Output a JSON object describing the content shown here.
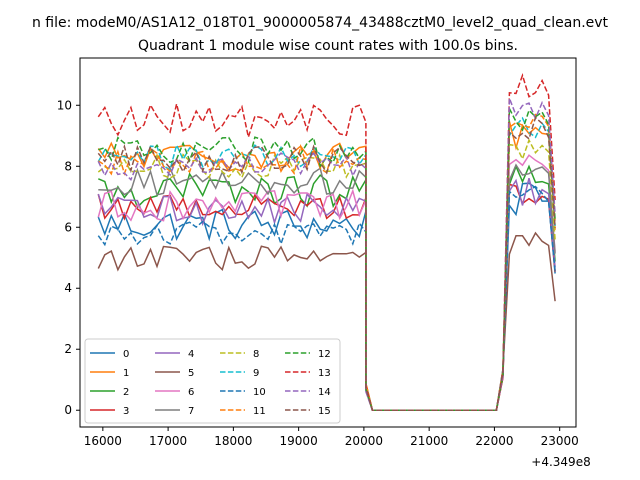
{
  "suptitle": "n file: modeM0/AS1A12_018T01_9000005874_43488cztM0_level2_quad_clean.evt",
  "chart_data": {
    "type": "line",
    "title": "Quadrant 1 module wise count rates with 100.0s bins.",
    "xlabel": "",
    "ylabel": "",
    "x_offset_label": "+4.349e8",
    "xlim": [
      15650,
      23250
    ],
    "ylim": [
      -0.55,
      11.55
    ],
    "xticks": [
      16000,
      17000,
      18000,
      19000,
      20000,
      21000,
      22000,
      23000
    ],
    "xtick_labels": [
      "16000",
      "17000",
      "18000",
      "19000",
      "20000",
      "21000",
      "22000",
      "23000"
    ],
    "yticks": [
      0,
      2,
      4,
      6,
      8,
      10
    ],
    "ytick_labels": [
      "0",
      "2",
      "4",
      "6",
      "8",
      "10"
    ],
    "grid": false,
    "legend_placement": "lower-left",
    "legend_columns": 4,
    "segments": {
      "active1": {
        "start": 15930,
        "end": 20030
      },
      "gap_x": [
        20030,
        20130,
        20230,
        22030,
        22130
      ],
      "gap_y": [
        0.75,
        0.0,
        0.0,
        0.0,
        1.2
      ],
      "active2": {
        "start": 22230,
        "end": 22930
      }
    },
    "series": [
      {
        "name": "0",
        "color": "#1f77b4",
        "dash": "solid",
        "level1": 6.1,
        "level2": 6.9,
        "spread": 0.55
      },
      {
        "name": "1",
        "color": "#ff7f0e",
        "dash": "solid",
        "level1": 8.3,
        "level2": 9.1,
        "spread": 0.5
      },
      {
        "name": "2",
        "color": "#2ca02c",
        "dash": "solid",
        "level1": 7.2,
        "level2": 7.5,
        "spread": 0.55
      },
      {
        "name": "3",
        "color": "#d62728",
        "dash": "solid",
        "level1": 6.7,
        "level2": 7.0,
        "spread": 0.45
      },
      {
        "name": "4",
        "color": "#9467bd",
        "dash": "solid",
        "level1": 6.6,
        "level2": 7.2,
        "spread": 0.5
      },
      {
        "name": "5",
        "color": "#8c564b",
        "dash": "solid",
        "level1": 5.0,
        "level2": 5.5,
        "spread": 0.4
      },
      {
        "name": "6",
        "color": "#e377c2",
        "dash": "solid",
        "level1": 6.7,
        "level2": 8.0,
        "spread": 0.5
      },
      {
        "name": "7",
        "color": "#7f7f7f",
        "dash": "solid",
        "level1": 7.5,
        "level2": 7.9,
        "spread": 0.45
      },
      {
        "name": "8",
        "color": "#bcbd22",
        "dash": "dashed",
        "level1": 8.0,
        "level2": 8.6,
        "spread": 0.4
      },
      {
        "name": "9",
        "color": "#17becf",
        "dash": "dashed",
        "level1": 8.3,
        "level2": 9.3,
        "spread": 0.45
      },
      {
        "name": "10",
        "color": "#1f77b4",
        "dash": "dashed",
        "level1": 5.8,
        "level2": 7.0,
        "spread": 0.4
      },
      {
        "name": "11",
        "color": "#ff7f0e",
        "dash": "dashed",
        "level1": 8.2,
        "level2": 9.5,
        "spread": 0.45
      },
      {
        "name": "12",
        "color": "#2ca02c",
        "dash": "dashed",
        "level1": 8.5,
        "level2": 9.6,
        "spread": 0.5
      },
      {
        "name": "13",
        "color": "#d62728",
        "dash": "dashed",
        "level1": 9.5,
        "level2": 10.6,
        "spread": 0.55
      },
      {
        "name": "14",
        "color": "#9467bd",
        "dash": "dashed",
        "level1": 8.0,
        "level2": 9.9,
        "spread": 0.45
      },
      {
        "name": "15",
        "color": "#8c564b",
        "dash": "dashed",
        "level1": 8.2,
        "level2": 9.2,
        "spread": 0.45
      }
    ]
  }
}
